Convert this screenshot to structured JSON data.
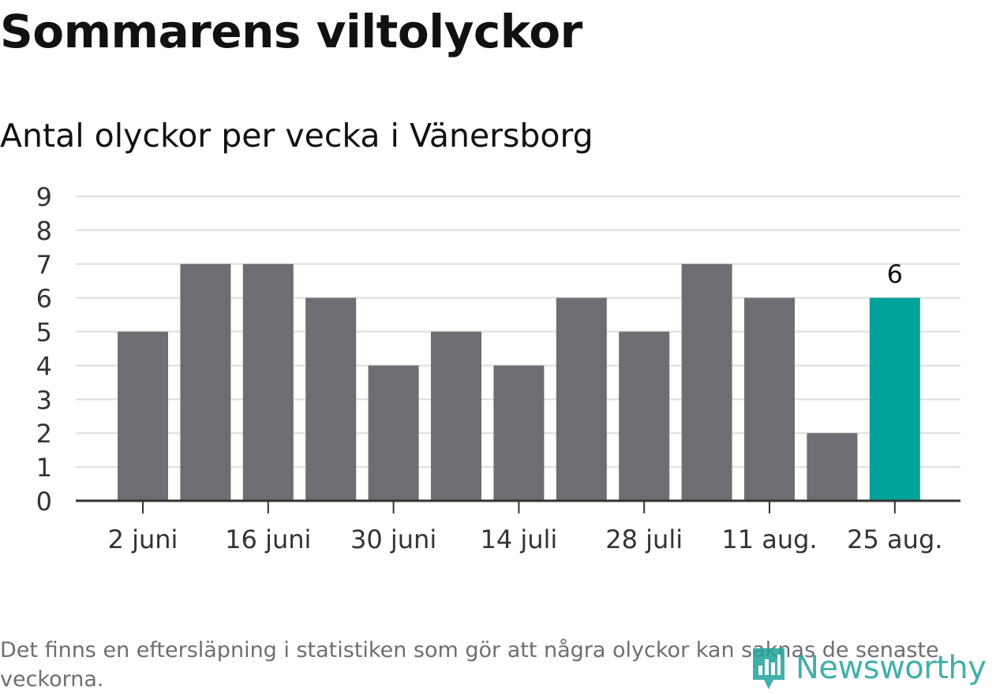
{
  "title": "Sommarens viltolyckor",
  "subtitle": "Antal olyckor per vecka i Vänersborg",
  "footnote": "Det finns en eftersläpning i statistiken som gör att några olyckor kan saknas de senaste veckorna.",
  "logo": {
    "text": "Newsworthy",
    "icon": "newsworthy-logo-icon",
    "color": "#22a39a"
  },
  "chart_data": {
    "type": "bar",
    "values": [
      5,
      7,
      7,
      6,
      4,
      5,
      4,
      6,
      5,
      7,
      6,
      2,
      6
    ],
    "x_tick_labels": [
      "2 juni",
      "16 juni",
      "30 juni",
      "14 juli",
      "28 juli",
      "11 aug.",
      "25 aug."
    ],
    "x_tick_bar_index": [
      0,
      2,
      4,
      6,
      8,
      10,
      12
    ],
    "y_ticks": [
      0,
      1,
      2,
      3,
      4,
      5,
      6,
      7,
      8,
      9
    ],
    "ylim": [
      0,
      9
    ],
    "grid": true,
    "highlight_index": 12,
    "value_label": {
      "index": 12,
      "text": "6"
    },
    "colors": {
      "bar": "#6e6d73",
      "highlight": "#00a39a",
      "grid": "#dedede",
      "axis": "#333333"
    }
  }
}
